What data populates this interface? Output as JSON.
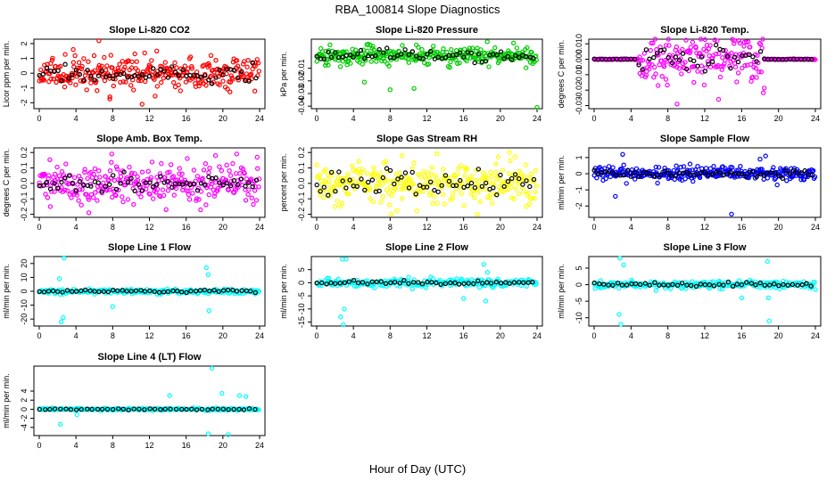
{
  "figure": {
    "title": "RBA_100814  Slope Diagnostics",
    "xlabel": "Hour of Day (UTC)"
  },
  "chart_data": [
    {
      "type": "scatter",
      "title": "Slope Li-820 CO2",
      "ylabel": "Licor ppm per min.",
      "xlim": [
        0,
        24
      ],
      "xticks": [
        "0",
        "4",
        "8",
        "12",
        "16",
        "20",
        "24"
      ],
      "ylim": [
        -2.4,
        2.3
      ],
      "yticks": [
        -2,
        -1,
        0,
        1,
        2
      ],
      "ytick_labels": [
        "-2",
        "-1",
        "0",
        "1",
        "2"
      ],
      "color": "#ff0000",
      "noise": 0.55,
      "extremes": [
        [
          6.5,
          2.2
        ],
        [
          3.7,
          1.6
        ],
        [
          7.7,
          -1.6
        ],
        [
          18.7,
          1.2
        ],
        [
          11.2,
          -2.1
        ],
        [
          12.8,
          1.5
        ]
      ],
      "density": 1.0,
      "transitions": [],
      "seed": 11
    },
    {
      "type": "scatter",
      "title": "Slope Li-820 Pressure",
      "ylabel": "kPa per min.",
      "xlim": [
        0,
        24
      ],
      "xticks": [
        "0",
        "4",
        "8",
        "12",
        "16",
        "20",
        "24"
      ],
      "ylim": [
        -0.042,
        0.013
      ],
      "yticks": [
        -0.04,
        -0.03,
        -0.02,
        -0.01
      ],
      "ytick_labels": [
        "-0.04",
        "-0.03",
        "-0.02",
        "-0.01"
      ],
      "color": "#00cc00",
      "noise": 0.0035,
      "extremes": [
        [
          8.0,
          -0.027
        ],
        [
          10.6,
          -0.026
        ],
        [
          5.2,
          -0.021
        ],
        [
          24.0,
          -0.041
        ],
        [
          21.8,
          0.006
        ],
        [
          3.9,
          0.005
        ]
      ],
      "density": 1.0,
      "transitions": [],
      "seed": 23
    },
    {
      "type": "scatter",
      "title": "Slope Li-820 Temp.",
      "ylabel": "degrees C per min.",
      "xlim": [
        0,
        24
      ],
      "xticks": [
        "0",
        "4",
        "8",
        "12",
        "16",
        "20",
        "24"
      ],
      "ylim": [
        -0.032,
        0.013
      ],
      "yticks": [
        -0.03,
        -0.02,
        -0.01,
        0.0,
        0.01
      ],
      "ytick_labels": [
        "-0.03",
        "-0.02",
        "-0.01",
        "0.000",
        "0.010"
      ],
      "color": "#ff00ff",
      "noise": 0.007,
      "extremes": [
        [
          15.2,
          0.012
        ],
        [
          16.3,
          0.011
        ],
        [
          9.0,
          -0.029
        ],
        [
          13.5,
          -0.026
        ],
        [
          7.8,
          0.009
        ]
      ],
      "density": 1.0,
      "transitions": [
        [
          0,
          4.8,
          0.02
        ],
        [
          4.8,
          18.5,
          1.0
        ],
        [
          18.5,
          24,
          0.02
        ]
      ],
      "seed": 37
    },
    {
      "type": "scatter",
      "title": "Slope Amb. Box Temp.",
      "ylabel": "degrees C per min.",
      "xlim": [
        0,
        24
      ],
      "xticks": [
        "0",
        "4",
        "8",
        "12",
        "16",
        "20",
        "24"
      ],
      "ylim": [
        -0.22,
        0.23
      ],
      "yticks": [
        -0.2,
        -0.1,
        0.0,
        0.1,
        0.2
      ],
      "ytick_labels": [
        "-0.2",
        "-0.1",
        "0.0",
        "0.1",
        "0.2"
      ],
      "color": "#ff00ff",
      "noise": 0.06,
      "extremes": [
        [
          5.4,
          -0.19
        ],
        [
          7.9,
          0.19
        ],
        [
          21.5,
          0.19
        ],
        [
          19.2,
          0.18
        ],
        [
          1.2,
          -0.15
        ]
      ],
      "density": 1.0,
      "transitions": [],
      "seed": 41
    },
    {
      "type": "scatter",
      "title": "Slope Gas Stream RH",
      "ylabel": "percent per min.",
      "xlim": [
        0,
        24
      ],
      "xticks": [
        "0",
        "4",
        "8",
        "12",
        "16",
        "20",
        "24"
      ],
      "ylim": [
        -0.22,
        0.23
      ],
      "yticks": [
        -0.2,
        -0.1,
        0.0,
        0.1,
        0.2
      ],
      "ytick_labels": [
        "-0.2",
        "-0.1",
        "0.0",
        "0.1",
        "0.2"
      ],
      "color": "#ffff00",
      "noise": 0.07,
      "extremes": [
        [
          17.5,
          -0.2
        ],
        [
          21.0,
          0.2
        ],
        [
          9.3,
          0.18
        ],
        [
          2.0,
          -0.15
        ]
      ],
      "density": 1.0,
      "transitions": [],
      "seed": 53
    },
    {
      "type": "scatter",
      "title": "Slope Sample Flow",
      "ylabel": "ml/min per min.",
      "xlim": [
        0,
        24
      ],
      "xticks": [
        "0",
        "4",
        "8",
        "12",
        "16",
        "20",
        "24"
      ],
      "ylim": [
        -2.7,
        1.6
      ],
      "yticks": [
        -2,
        -1,
        0,
        1
      ],
      "ytick_labels": [
        "-2",
        "-1",
        "0",
        "1"
      ],
      "color": "#0000ff",
      "noise": 0.2,
      "extremes": [
        [
          14.9,
          -2.5
        ],
        [
          2.3,
          -1.4
        ],
        [
          3.1,
          1.2
        ],
        [
          3.5,
          -0.6
        ],
        [
          18.6,
          1.1
        ],
        [
          18.0,
          0.9
        ],
        [
          10.4,
          0.6
        ]
      ],
      "density": 1.0,
      "transitions": [],
      "seed": 67
    },
    {
      "type": "scatter",
      "title": "Slope Line 1 Flow",
      "ylabel": "ml/min per min.",
      "xlim": [
        0,
        24
      ],
      "xticks": [
        "0",
        "4",
        "8",
        "12",
        "16",
        "20",
        "24"
      ],
      "ylim": [
        -25,
        25
      ],
      "yticks": [
        -20,
        -10,
        0,
        10,
        20
      ],
      "ytick_labels": [
        "-20",
        "-10",
        "0",
        "10",
        "20"
      ],
      "color": "#00ffff",
      "noise": 0.8,
      "extremes": [
        [
          2.7,
          24
        ],
        [
          2.4,
          -22
        ],
        [
          2.6,
          -19
        ],
        [
          18.2,
          17
        ],
        [
          18.4,
          12
        ],
        [
          18.5,
          -14
        ],
        [
          8.0,
          -11
        ],
        [
          2.2,
          9
        ]
      ],
      "density": 0.8,
      "transitions": [],
      "seed": 71
    },
    {
      "type": "scatter",
      "title": "Slope Line 2 Flow",
      "ylabel": "ml/min per min.",
      "xlim": [
        0,
        24
      ],
      "xticks": [
        "0",
        "4",
        "8",
        "12",
        "16",
        "20",
        "24"
      ],
      "ylim": [
        -16.5,
        10
      ],
      "yticks": [
        -15,
        -10,
        -5,
        0,
        5
      ],
      "ytick_labels": [
        "-15",
        "-10",
        "-5",
        "0",
        "5"
      ],
      "color": "#00ffff",
      "noise": 0.7,
      "extremes": [
        [
          2.8,
          9
        ],
        [
          3.2,
          9
        ],
        [
          2.6,
          -13
        ],
        [
          2.9,
          -16
        ],
        [
          3.0,
          -10
        ],
        [
          18.2,
          7
        ],
        [
          18.6,
          4
        ],
        [
          18.4,
          -7
        ],
        [
          16.0,
          -6
        ]
      ],
      "density": 0.8,
      "transitions": [],
      "seed": 83
    },
    {
      "type": "scatter",
      "title": "Slope Line 3 Flow",
      "ylabel": "ml/min per min.",
      "xlim": [
        0,
        24
      ],
      "xticks": [
        "0",
        "4",
        "8",
        "12",
        "16",
        "20",
        "24"
      ],
      "ylim": [
        -12.5,
        8.5
      ],
      "yticks": [
        -10,
        -5,
        0,
        5
      ],
      "ytick_labels": [
        "-10",
        "-5",
        "0",
        "5"
      ],
      "color": "#00ffff",
      "noise": 0.6,
      "extremes": [
        [
          2.8,
          8
        ],
        [
          3.2,
          6
        ],
        [
          2.7,
          -9
        ],
        [
          2.9,
          -12
        ],
        [
          18.8,
          7
        ],
        [
          18.9,
          -4
        ],
        [
          19.0,
          -11
        ],
        [
          16.0,
          -4
        ],
        [
          24.0,
          -1.5
        ]
      ],
      "density": 0.8,
      "transitions": [],
      "seed": 97
    },
    {
      "type": "scatter",
      "title": "Slope Line 4 (LT) Flow",
      "ylabel": "ml/min per min.",
      "xlim": [
        0,
        24
      ],
      "xticks": [
        "0",
        "4",
        "8",
        "12",
        "16",
        "20",
        "24"
      ],
      "ylim": [
        -5.8,
        9.5
      ],
      "yticks": [
        -4,
        -2,
        0,
        2,
        4
      ],
      "ytick_labels": [
        "-4",
        "-2",
        "0",
        "2",
        "4"
      ],
      "color": "#00ffff",
      "noise": 0.12,
      "extremes": [
        [
          18.8,
          9
        ],
        [
          19.9,
          3.5
        ],
        [
          14.2,
          3
        ],
        [
          21.8,
          3
        ],
        [
          22.5,
          2.8
        ],
        [
          2.3,
          -3.3
        ],
        [
          4.1,
          -1.2
        ],
        [
          18.4,
          -5.4
        ],
        [
          20.6,
          -5.6
        ]
      ],
      "density": 0.7,
      "transitions": [],
      "seed": 101
    }
  ]
}
